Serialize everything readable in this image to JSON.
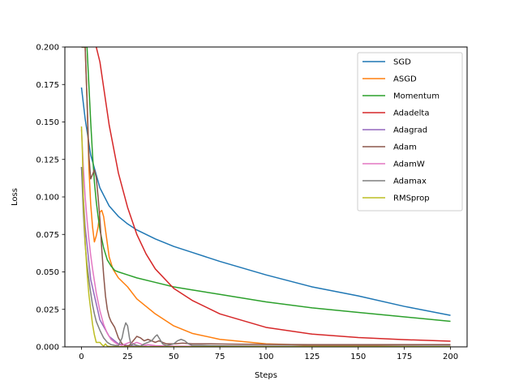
{
  "chart_data": {
    "type": "line",
    "title": "",
    "xlabel": "Steps",
    "ylabel": "Loss",
    "xlim": [
      -9,
      209
    ],
    "ylim": [
      0,
      0.2
    ],
    "xticks": [
      0,
      25,
      50,
      75,
      100,
      125,
      150,
      175,
      200
    ],
    "yticks": [
      0.0,
      0.025,
      0.05,
      0.075,
      0.1,
      0.125,
      0.15,
      0.175,
      0.2
    ],
    "ytick_labels": [
      "0.000",
      "0.025",
      "0.050",
      "0.075",
      "0.100",
      "0.125",
      "0.150",
      "0.175",
      "0.200"
    ],
    "grid": false,
    "legend_position": "top-right",
    "series": [
      {
        "name": "SGD",
        "color": "#1f77b4",
        "x": [
          0,
          2,
          5,
          10,
          15,
          20,
          25,
          30,
          40,
          50,
          60,
          75,
          100,
          125,
          150,
          175,
          200
        ],
        "y": [
          0.173,
          0.152,
          0.128,
          0.106,
          0.094,
          0.087,
          0.082,
          0.078,
          0.072,
          0.067,
          0.063,
          0.057,
          0.048,
          0.04,
          0.034,
          0.027,
          0.021
        ]
      },
      {
        "name": "ASGD",
        "color": "#ff7f0e",
        "x": [
          0,
          1,
          2,
          3,
          4,
          5,
          6,
          7,
          8,
          9,
          10,
          11,
          12,
          13,
          15,
          17,
          20,
          25,
          30,
          40,
          50,
          60,
          75,
          100,
          125,
          150,
          175,
          200
        ],
        "y": [
          0.2,
          0.2,
          0.2,
          0.165,
          0.12,
          0.095,
          0.08,
          0.07,
          0.074,
          0.08,
          0.09,
          0.091,
          0.087,
          0.078,
          0.06,
          0.052,
          0.046,
          0.04,
          0.032,
          0.022,
          0.014,
          0.009,
          0.005,
          0.002,
          0.001,
          0.0008,
          0.0005,
          0.0003
        ]
      },
      {
        "name": "Momentum",
        "color": "#2ca02c",
        "x": [
          0,
          1,
          2,
          3,
          4,
          5,
          6,
          7,
          8,
          9,
          10,
          12,
          14,
          16,
          18,
          20,
          25,
          30,
          40,
          50,
          60,
          75,
          100,
          125,
          150,
          175,
          200
        ],
        "y": [
          0.2,
          0.2,
          0.2,
          0.2,
          0.175,
          0.15,
          0.128,
          0.11,
          0.097,
          0.087,
          0.078,
          0.066,
          0.058,
          0.054,
          0.051,
          0.05,
          0.048,
          0.046,
          0.043,
          0.04,
          0.038,
          0.035,
          0.03,
          0.026,
          0.023,
          0.02,
          0.017
        ]
      },
      {
        "name": "Adadelta",
        "color": "#d62728",
        "x": [
          8,
          10,
          15,
          20,
          25,
          30,
          35,
          40,
          50,
          60,
          75,
          100,
          125,
          150,
          175,
          200
        ],
        "y": [
          0.2,
          0.19,
          0.148,
          0.116,
          0.093,
          0.075,
          0.062,
          0.052,
          0.039,
          0.031,
          0.022,
          0.013,
          0.0085,
          0.0062,
          0.0048,
          0.0038
        ]
      },
      {
        "name": "Adagrad",
        "color": "#9467bd",
        "x": [
          0,
          2,
          5,
          10,
          15,
          20,
          25,
          30,
          40,
          50,
          75,
          100,
          150,
          200
        ],
        "y": [
          0.12,
          0.08,
          0.045,
          0.018,
          0.007,
          0.002,
          0.0008,
          0.0004,
          0.0002,
          0.0001,
          0.0001,
          0.0001,
          0.0001,
          0.0001
        ]
      },
      {
        "name": "Adam",
        "color": "#8c564b",
        "x": [
          0,
          1,
          2,
          3,
          4,
          5,
          6,
          7,
          8,
          9,
          10,
          11,
          12,
          13,
          14,
          15,
          16,
          18,
          20,
          22,
          24,
          26,
          28,
          30,
          32,
          34,
          36,
          38,
          40,
          42,
          44,
          46,
          50,
          55,
          60,
          70,
          80,
          100,
          125,
          150,
          175,
          200
        ],
        "y": [
          0.2,
          0.2,
          0.2,
          0.165,
          0.128,
          0.112,
          0.115,
          0.118,
          0.113,
          0.1,
          0.085,
          0.065,
          0.048,
          0.034,
          0.025,
          0.02,
          0.017,
          0.013,
          0.006,
          0.002,
          0.0005,
          0.001,
          0.004,
          0.007,
          0.006,
          0.004,
          0.005,
          0.004,
          0.003,
          0.004,
          0.003,
          0.002,
          0.002,
          0.0025,
          0.002,
          0.002,
          0.0018,
          0.0016,
          0.0015,
          0.0015,
          0.0015,
          0.0015
        ]
      },
      {
        "name": "AdamW",
        "color": "#e377c2",
        "x": [
          0,
          1,
          2,
          3,
          4,
          5,
          6,
          8,
          10,
          12,
          14,
          16,
          18,
          20,
          22,
          24,
          26,
          28,
          30,
          32,
          34,
          36,
          40,
          50,
          60,
          75,
          100,
          150,
          200
        ],
        "y": [
          0.145,
          0.12,
          0.1,
          0.085,
          0.072,
          0.061,
          0.052,
          0.036,
          0.024,
          0.015,
          0.009,
          0.005,
          0.003,
          0.0015,
          0.001,
          0.002,
          0.003,
          0.002,
          0.003,
          0.002,
          0.001,
          0.0015,
          0.0008,
          0.0005,
          0.0004,
          0.0003,
          0.0003,
          0.0003,
          0.0003
        ]
      },
      {
        "name": "Adamax",
        "color": "#7f7f7f",
        "x": [
          0,
          1,
          2,
          3,
          4,
          5,
          6,
          7,
          8,
          10,
          12,
          14,
          16,
          18,
          20,
          22,
          23,
          24,
          25,
          26,
          27,
          28,
          30,
          32,
          34,
          36,
          38,
          40,
          41,
          42,
          44,
          46,
          50,
          52,
          54,
          56,
          58,
          60,
          65,
          70,
          80,
          100,
          125,
          150,
          175,
          200
        ],
        "y": [
          0.12,
          0.09,
          0.068,
          0.055,
          0.045,
          0.036,
          0.028,
          0.022,
          0.017,
          0.011,
          0.006,
          0.003,
          0.0015,
          0.001,
          0.0008,
          0.006,
          0.012,
          0.016,
          0.014,
          0.006,
          0.001,
          0.002,
          0.001,
          0.0005,
          0.002,
          0.003,
          0.004,
          0.007,
          0.008,
          0.006,
          0.002,
          0.0008,
          0.002,
          0.004,
          0.005,
          0.004,
          0.002,
          0.001,
          0.001,
          0.0008,
          0.0006,
          0.0005,
          0.0005,
          0.0005,
          0.0005,
          0.0005
        ]
      },
      {
        "name": "RMSprop",
        "color": "#bcbd22",
        "x": [
          0,
          0.5,
          1,
          2,
          3,
          4,
          5,
          6,
          7,
          8,
          9,
          10,
          11,
          12,
          13,
          14,
          16,
          18,
          20,
          25,
          50,
          100,
          150,
          200
        ],
        "y": [
          0.147,
          0.13,
          0.1,
          0.07,
          0.05,
          0.035,
          0.025,
          0.015,
          0.008,
          0.003,
          0.003,
          0.003,
          0.0015,
          0.0005,
          0.002,
          0.0005,
          0.0002,
          0.0001,
          0.0001,
          0.0001,
          0.0001,
          0.0001,
          0.0001,
          0.0001
        ]
      }
    ]
  }
}
